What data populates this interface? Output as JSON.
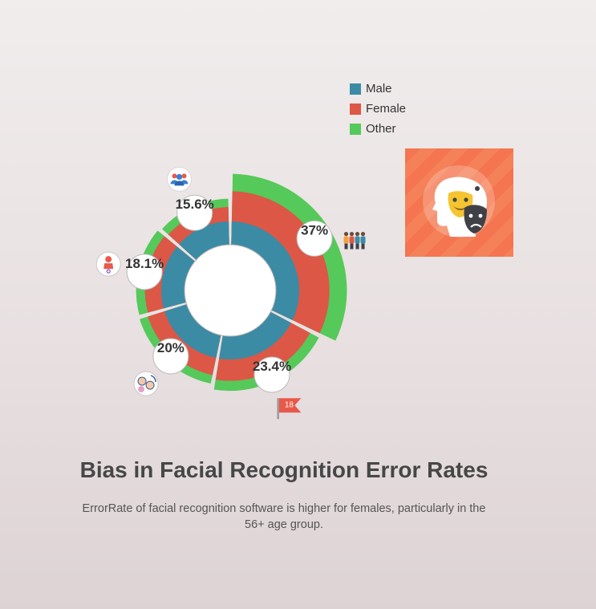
{
  "chart_data": {
    "type": "pie",
    "subtype": "stacked-radial",
    "title": "Bias in Facial Recognition Error Rates",
    "subtitle": "ErrorRate of facial recognition software is higher for females, particularly in the 56+ age group.",
    "series": [
      {
        "name": "Male",
        "color": "#3b8ba5"
      },
      {
        "name": "Female",
        "color": "#dc5746"
      },
      {
        "name": "Other",
        "color": "#55c959"
      }
    ],
    "segments": [
      {
        "percent_label": "37%",
        "share": 37.0,
        "levels": {
          "Male": 1,
          "Female": 2.3,
          "Other": 3.05
        },
        "icon": "group-of-people-icon"
      },
      {
        "percent_label": "23.4%",
        "share": 23.4,
        "levels": {
          "Male": 1,
          "Female": 1.92,
          "Other": 2.35
        },
        "icon": "flag-18-icon"
      },
      {
        "percent_label": "20%",
        "share": 20.0,
        "levels": {
          "Male": 1,
          "Female": 1.75,
          "Other": 2.12
        },
        "icon": "faces-cycle-icon"
      },
      {
        "percent_label": "18.1%",
        "share": 18.1,
        "levels": {
          "Male": 1,
          "Female": 1.7,
          "Other": 2.08
        },
        "icon": "female-person-icon"
      },
      {
        "percent_label": "15.6%",
        "share": 15.6,
        "levels": {
          "Male": 1,
          "Female": 1.62,
          "Other": 1.98
        },
        "icon": "people-group-icon"
      }
    ],
    "legend_position": "top-right"
  },
  "legend": {
    "items": [
      {
        "label": "Male",
        "color": "#3b8ba5"
      },
      {
        "label": "Female",
        "color": "#dc5746"
      },
      {
        "label": "Other",
        "color": "#55c959"
      }
    ]
  },
  "hero_image": {
    "icon": "theater-masks-icon",
    "background": "#f4754f"
  }
}
